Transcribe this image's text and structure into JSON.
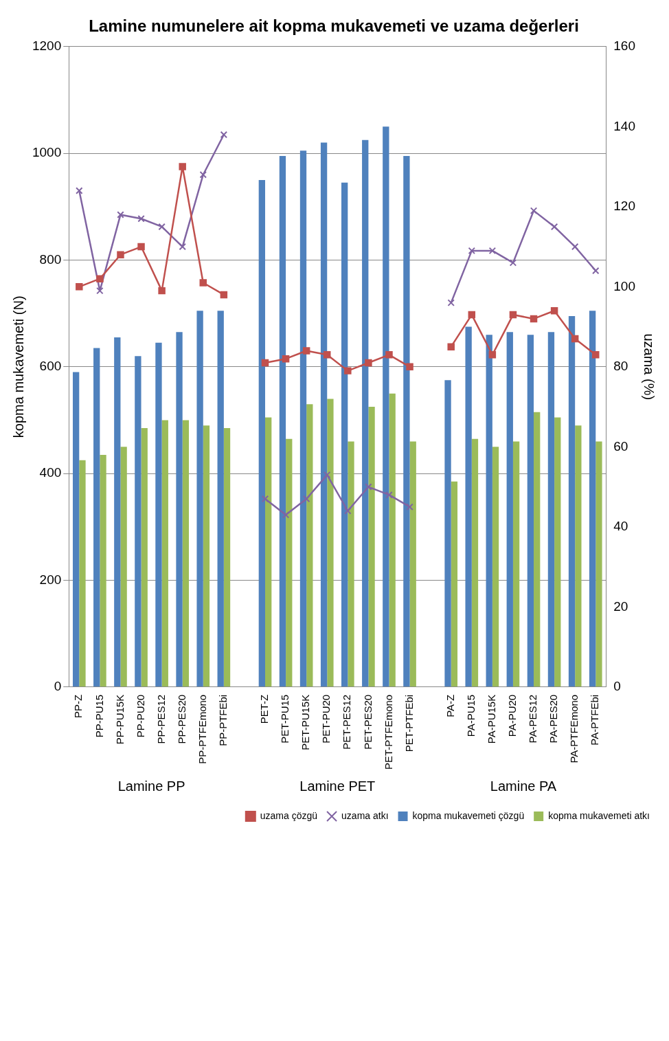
{
  "chart_data": {
    "type": "bar",
    "title": "Lamine numunelere ait kopma mukavemeti ve uzama değerleri",
    "categories": [
      "PP-Z",
      "PP-PU15",
      "PP-PU15K",
      "PP-PU20",
      "PP-PES12",
      "PP-PES20",
      "PP-PTFEmono",
      "PP-PTFEbi",
      null,
      "PET-Z",
      "PET-PU15",
      "PET-PU15K",
      "PET-PU20",
      "PET-PES12",
      "PET-PES20",
      "PET-PTFEmono",
      "PET-PTFEbi",
      null,
      "PA-Z",
      "PA-PU15",
      "PA-PU15K",
      "PA-PU20",
      "PA-PES12",
      "PA-PES20",
      "PA-PTFEmono",
      "PA-PTFEbi"
    ],
    "annotations": [
      "Lamine PP",
      "Lamine PET",
      "Lamine PA"
    ],
    "ylabel": "kopma mukavemeti (N)",
    "y2label": "uzama (%)",
    "ylim": [
      0,
      1200
    ],
    "yticks": [
      0,
      200,
      400,
      600,
      800,
      1000,
      1200
    ],
    "y2lim": [
      0,
      160
    ],
    "y2ticks": [
      0,
      20,
      40,
      60,
      80,
      100,
      120,
      140,
      160
    ],
    "grid": "y",
    "legend": "bottom right",
    "series": [
      {
        "name": "kopma mukavemeti çözgü",
        "color": "#4f81bd",
        "values": [
          590,
          635,
          655,
          620,
          645,
          665,
          705,
          705,
          null,
          950,
          995,
          1005,
          1020,
          945,
          1025,
          1050,
          995,
          null,
          575,
          675,
          660,
          665,
          660,
          665,
          695,
          705
        ]
      },
      {
        "name": "kopma mukavemeti atkı",
        "color": "#9bbb59",
        "values": [
          425,
          435,
          450,
          485,
          500,
          500,
          490,
          485,
          null,
          505,
          465,
          530,
          540,
          460,
          525,
          550,
          460,
          null,
          385,
          465,
          450,
          460,
          515,
          505,
          490,
          460
        ]
      },
      {
        "name": "uzama çözgü",
        "type": "line",
        "axis": "y2",
        "marker": "square",
        "color": "#c0504d",
        "values": [
          100,
          102,
          108,
          110,
          99,
          130,
          101,
          98,
          null,
          81,
          82,
          84,
          83,
          79,
          81,
          83,
          80,
          null,
          85,
          93,
          83,
          93,
          92,
          94,
          87,
          83
        ]
      },
      {
        "name": "uzama atkı",
        "type": "line",
        "axis": "y2",
        "marker": "cross",
        "color": "#8064a2",
        "values": [
          124,
          99,
          118,
          117,
          115,
          110,
          128,
          138,
          null,
          47,
          43,
          47,
          53,
          44,
          50,
          48,
          45,
          null,
          96,
          109,
          109,
          106,
          119,
          115,
          110,
          104
        ]
      }
    ]
  }
}
